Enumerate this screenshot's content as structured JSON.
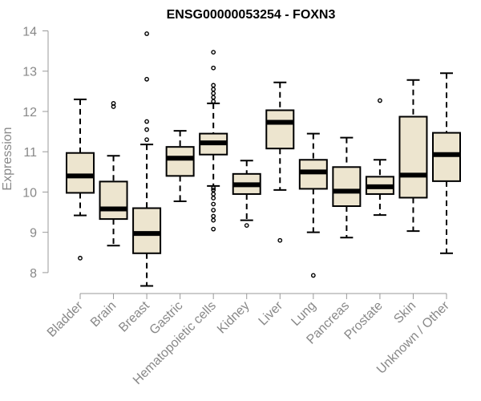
{
  "chart_data": {
    "type": "boxplot",
    "title": "ENSG00000053254 - FOXN3",
    "xlabel": "",
    "ylabel": "Expression",
    "ylim": [
      7.6,
      14.05
    ],
    "yticks": [
      8,
      9,
      10,
      11,
      12,
      13,
      14
    ],
    "box_color": "#ede5cf",
    "categories": [
      "Bladder",
      "Brain",
      "Breast",
      "Gastric",
      "Hematopoietic cells",
      "Kidney",
      "Liver",
      "Lung",
      "Pancreas",
      "Prostate",
      "Skin",
      "Unknown / Other"
    ],
    "boxes": [
      {
        "name": "Bladder",
        "low": 9.42,
        "q1": 9.98,
        "median": 10.4,
        "q3": 10.97,
        "high": 12.3,
        "outliers": [
          8.36
        ]
      },
      {
        "name": "Brain",
        "low": 8.67,
        "q1": 9.33,
        "median": 9.58,
        "q3": 10.26,
        "high": 10.9,
        "outliers": [
          12.12,
          12.2
        ]
      },
      {
        "name": "Breast",
        "low": 7.67,
        "q1": 8.48,
        "median": 8.97,
        "q3": 9.6,
        "high": 11.18,
        "outliers": [
          11.3,
          11.55,
          11.75,
          12.8,
          13.93
        ]
      },
      {
        "name": "Gastric",
        "low": 9.77,
        "q1": 10.4,
        "median": 10.84,
        "q3": 11.12,
        "high": 11.52,
        "outliers": []
      },
      {
        "name": "Hematopoietic cells",
        "low": 10.15,
        "q1": 10.93,
        "median": 11.22,
        "q3": 11.45,
        "high": 12.2,
        "outliers": [
          9.08,
          9.3,
          9.4,
          9.55,
          9.7,
          9.85,
          9.95,
          10.05,
          10.1,
          12.25,
          12.35,
          12.45,
          12.55,
          12.65,
          13.08,
          13.47
        ]
      },
      {
        "name": "Kidney",
        "low": 9.3,
        "q1": 9.95,
        "median": 10.18,
        "q3": 10.45,
        "high": 10.78,
        "outliers": [
          9.17
        ]
      },
      {
        "name": "Liver",
        "low": 10.05,
        "q1": 11.08,
        "median": 11.73,
        "q3": 12.03,
        "high": 12.72,
        "outliers": [
          8.8
        ]
      },
      {
        "name": "Lung",
        "low": 9.0,
        "q1": 10.08,
        "median": 10.5,
        "q3": 10.8,
        "high": 11.45,
        "outliers": [
          7.93
        ]
      },
      {
        "name": "Pancreas",
        "low": 8.87,
        "q1": 9.65,
        "median": 10.02,
        "q3": 10.62,
        "high": 11.35,
        "outliers": []
      },
      {
        "name": "Prostate",
        "low": 9.43,
        "q1": 9.95,
        "median": 10.13,
        "q3": 10.38,
        "high": 10.8,
        "outliers": [
          12.27
        ]
      },
      {
        "name": "Skin",
        "low": 9.03,
        "q1": 9.86,
        "median": 10.42,
        "q3": 11.87,
        "high": 12.78,
        "outliers": []
      },
      {
        "name": "Unknown / Other",
        "low": 8.48,
        "q1": 10.27,
        "median": 10.93,
        "q3": 11.47,
        "high": 12.95,
        "outliers": []
      }
    ]
  }
}
